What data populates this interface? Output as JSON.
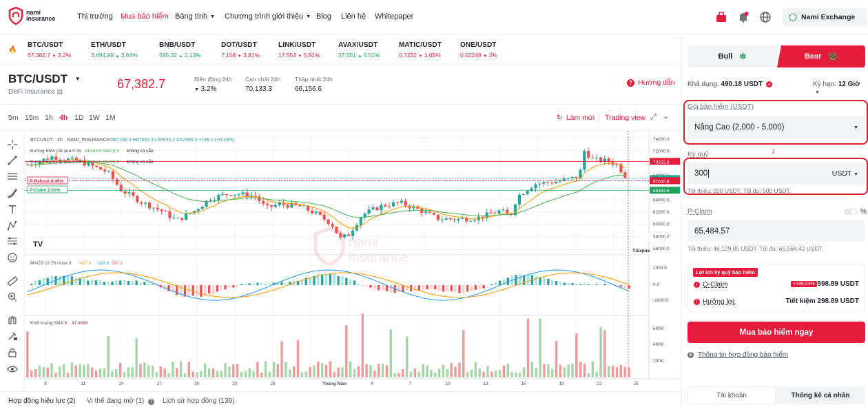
{
  "header": {
    "logo_line1": "nami",
    "logo_line2": "insurance",
    "nav": {
      "market": "Thị trường",
      "buy_insurance": "Mua bảo hiểm",
      "tables": "Bảng tính",
      "referral": "Chương trình giới thiệu",
      "blog": "Blog",
      "contact": "Liên hệ",
      "whitepaper": "Whitepaper"
    },
    "account_name": "Nami Exchange",
    "icons": [
      "gift-icon",
      "bell-icon",
      "globe-icon",
      "nami-exchange-logo-icon",
      "fire-icon"
    ]
  },
  "ticker": [
    {
      "symbol": "BTC/USDT",
      "price": "67,382.7",
      "change": "3.2%",
      "dir": "down"
    },
    {
      "symbol": "ETH/USDT",
      "price": "3,694.99",
      "change": "3.64%",
      "dir": "up"
    },
    {
      "symbol": "BNB/USDT",
      "price": "595.32",
      "change": "2.13%",
      "dir": "up"
    },
    {
      "symbol": "DOT/USDT",
      "price": "7.158",
      "change": "3.81%",
      "dir": "down"
    },
    {
      "symbol": "LINK/USDT",
      "price": "17.553",
      "change": "5.91%",
      "dir": "down"
    },
    {
      "symbol": "AVAX/USDT",
      "price": "37.551",
      "change": "5.51%",
      "dir": "up"
    },
    {
      "symbol": "MATIC/USDT",
      "price": "0.7232",
      "change": "1.65%",
      "dir": "down"
    },
    {
      "symbol": "ONE/USDT",
      "price": "0.02249",
      "change": "2%",
      "dir": "down"
    }
  ],
  "symbol_bar": {
    "symbol": "BTC/USDT",
    "subtitle": "DeFi Insurance",
    "price": "67,382.7",
    "stats": [
      {
        "label": "Biến động 24h",
        "value": "3.2%"
      },
      {
        "label": "Cao nhất 24h",
        "value": "70,133.3"
      },
      {
        "label": "Thấp nhất 24h",
        "value": "66,156.6"
      }
    ],
    "guide": "Hướng dẫn"
  },
  "timeframes": [
    "5m",
    "15m",
    "1h",
    "4h",
    "1D",
    "1W",
    "1M"
  ],
  "active_timeframe": "4h",
  "chart_controls": {
    "refresh": "Làm mới",
    "trading_view": "Trading view"
  },
  "chart": {
    "legend_main": "BTCUSDT · 4h · NAMI_INSURANCE",
    "ohlc": "O67196.0 H67547.3 L66635.2 C67396.2 +198.2 (+0.29%)",
    "ema1_label": "Đường EMA cắt qua 9 26",
    "ema1_values": "68144.5  68479.9",
    "ema1_status": "không có sẵn",
    "ema2_label": "Đường EMA cắt qua 9 26",
    "ema2_values": "68144.5  68479.9",
    "ema2_status": "không có sẵn",
    "p_refund": "P-Refund 0.49%",
    "p_claim": "P-Claim 2.81%",
    "t_expire": "T-Expire",
    "price_axis": [
      "74000.0",
      "72000.0",
      "70229.9",
      "68000.0",
      "67396.2",
      "67045.8",
      "65484.6",
      "64000.0",
      "62000.0",
      "60000.0",
      "58000.0",
      "56000.0"
    ],
    "macd_label": "MACD 12 26 close 9",
    "macd_values": [
      "-417.0",
      "-119.8",
      "297.2"
    ],
    "macd_axis": [
      "1000.0",
      "0.0",
      "-1000.0"
    ],
    "volume_label": "Khối lượng SMA 9",
    "volume_value": "47.466K",
    "volume_axis": [
      "600K",
      "400K",
      "200K"
    ],
    "date_axis": [
      "8",
      "11",
      "14",
      "17",
      "20",
      "23",
      "26",
      "Tháng Năm",
      "4",
      "7",
      "10",
      "13",
      "16",
      "19",
      "22",
      "25"
    ],
    "watermark_line1": "nami",
    "watermark_line2": "insurance",
    "colors": {
      "up": "#26a69a",
      "down": "#ef5350",
      "ema_fast": "#2196f3",
      "ema_slow": "#ff9800",
      "ema_green": "#4caf50",
      "level": "#e31d3a"
    }
  },
  "bottom_tabs": {
    "active_contracts": "Hợp đồng hiệu lực (2)",
    "open_positions": "Vị thế đang mở (1)",
    "history": "Lịch sử hợp đồng (139)"
  },
  "panel": {
    "bull": "Bull",
    "bear": "Bear",
    "available_label": "Khả dụng:",
    "available_value": "490.18 USDT",
    "term_label": "Kỳ hạn:",
    "term_value": "12 Giờ",
    "package_label": "Gói bảo hiểm (USDT)",
    "package_value": "Nâng Cao (2,000 - 5,000)",
    "margin_label": "Ký quỹ",
    "margin_value": "300",
    "margin_unit": "USDT",
    "margin_hint": "Tối thiểu: 200 USDT. Tối đa: 500 USDT.",
    "pclaim_label": "P-Claim",
    "pclaim_value": "65,484.57",
    "pclaim_hint": "Tối thiểu: 46,129.85 USDT. Tối đa: 65,568.42 USDT.",
    "pct_symbol": "%",
    "benefit_title": "Lợi ích ký quỹ bảo hiểm",
    "qclaim_label": "Q-Claim",
    "qclaim_badge": "+199.63%",
    "qclaim_value": "598.89 USDT",
    "profit_label": "Hưởng lợi:",
    "profit_value": "Tiết kiệm 298.89 USDT",
    "buy_button": "Mua bảo hiểm ngay",
    "contract_info": "Thông tin hợp đồng bảo hiểm",
    "tab_account": "Tài khoản",
    "tab_stats": "Thống kê cá nhân"
  }
}
